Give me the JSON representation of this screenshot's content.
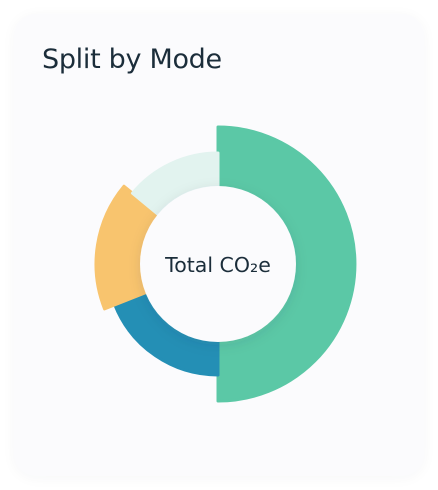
{
  "card": {
    "title": "Split by Mode"
  },
  "chart_data": {
    "type": "pie",
    "variant": "donut",
    "title": "Split by Mode",
    "center_label": "Total CO₂e",
    "legend": "none",
    "start_angle_deg": 0,
    "direction": "clockwise",
    "slices": [
      {
        "value": 50,
        "color": "#5bc8a6"
      },
      {
        "value": 19,
        "color": "#248fb5"
      },
      {
        "value": 17,
        "color": "#f8c46e"
      },
      {
        "value": 14,
        "color": "#e2f3ef"
      }
    ]
  }
}
